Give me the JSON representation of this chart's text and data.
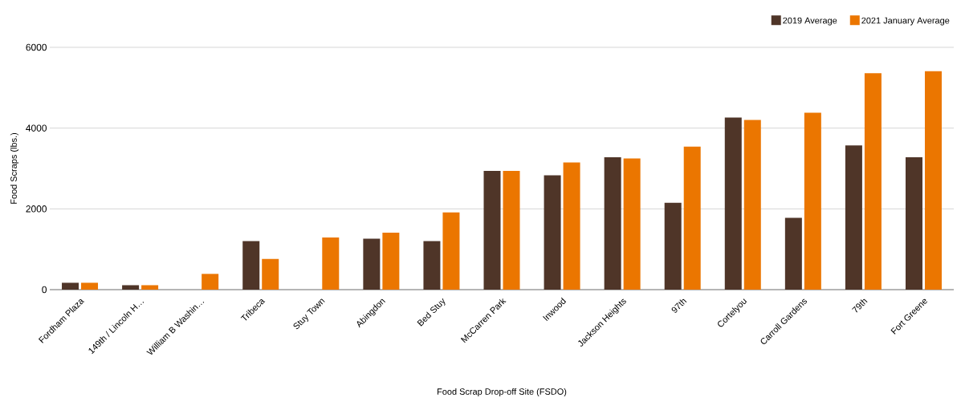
{
  "chart_data": {
    "type": "bar",
    "xlabel": "Food Scrap Drop-off Site (FSDO)",
    "ylabel": "Food Scraps (lbs.)",
    "categories": [
      "Fordham Plaza",
      "149th / Lincoln H…",
      "William B Washin…",
      "Tribeca",
      "Stuy Town",
      "Abingdon",
      "Bed Stuy",
      "McCarren Park",
      "Inwood",
      "Jackson Heights",
      "97th",
      "Cortelyou",
      "Carroll Gardens",
      "79th",
      "Fort Greene"
    ],
    "series": [
      {
        "name": "2019 Average",
        "color": "#4f3528",
        "values": [
          170,
          110,
          null,
          1200,
          null,
          1260,
          1200,
          2940,
          2830,
          3280,
          2150,
          4260,
          1780,
          3570,
          3280
        ]
      },
      {
        "name": "2021 January Average",
        "color": "#eb7600",
        "values": [
          170,
          110,
          390,
          760,
          1290,
          1410,
          1910,
          2940,
          3150,
          3250,
          3540,
          4200,
          4380,
          5360,
          5410
        ]
      }
    ],
    "ylim": [
      0,
      6000
    ],
    "yticks": [
      0,
      2000,
      4000,
      6000
    ],
    "grid": "y",
    "legend": "top right"
  }
}
